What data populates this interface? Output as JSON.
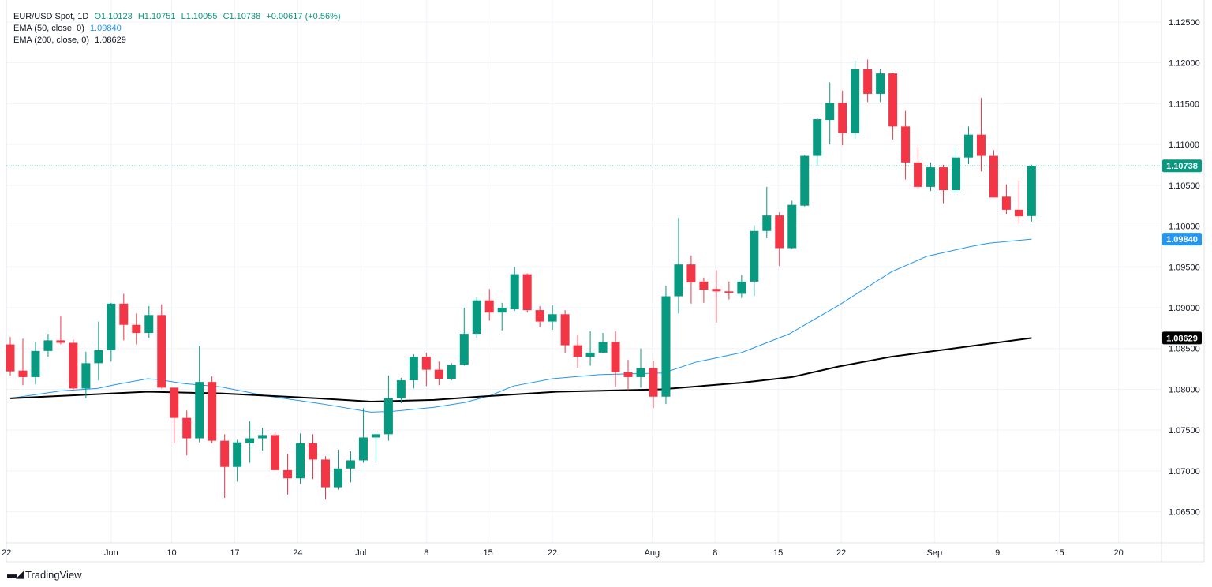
{
  "legend": {
    "symbol": "EUR/USD Spot, 1D",
    "open": "O1.10123",
    "high": "H1.10751",
    "low": "L1.10055",
    "close": "C1.10738",
    "change": "+0.00617 (+0.56%)",
    "ema50_label": "EMA (50, close, 0)",
    "ema50_value": "1.09840",
    "ema200_label": "EMA (200, close, 0)",
    "ema200_value": "1.08629"
  },
  "brand": "TradingView",
  "colors": {
    "up": "#089981",
    "down": "#f23645",
    "ema50": "#2196f3",
    "ema200": "#000000",
    "grid": "#f0f3fa"
  },
  "chart_data": {
    "type": "candlestick",
    "title": "EUR/USD Spot, 1D",
    "ylim": [
      1.061,
      1.1277
    ],
    "y_ticks": [
      "1.12500",
      "1.12000",
      "1.11500",
      "1.11000",
      "1.10500",
      "1.10000",
      "1.09500",
      "1.09000",
      "1.08500",
      "1.08000",
      "1.07500",
      "1.07000",
      "1.06500"
    ],
    "x_ticks": [
      {
        "label": "22",
        "index": -0.3
      },
      {
        "label": "Jun",
        "index": 8
      },
      {
        "label": "10",
        "index": 12.8
      },
      {
        "label": "17",
        "index": 17.8
      },
      {
        "label": "24",
        "index": 22.8
      },
      {
        "label": "Jul",
        "index": 27.8
      },
      {
        "label": "8",
        "index": 33
      },
      {
        "label": "15",
        "index": 37.9
      },
      {
        "label": "22",
        "index": 43
      },
      {
        "label": "Aug",
        "index": 50.9
      },
      {
        "label": "8",
        "index": 55.9
      },
      {
        "label": "15",
        "index": 60.9
      },
      {
        "label": "22",
        "index": 65.9
      },
      {
        "label": "Sep",
        "index": 73.3
      },
      {
        "label": "9",
        "index": 78.3
      },
      {
        "label": "15",
        "index": 83.2
      },
      {
        "label": "20",
        "index": 87.9
      }
    ],
    "ohlc": [
      [
        1.0855,
        1.0864,
        1.0817,
        1.0822
      ],
      [
        1.0823,
        1.0862,
        1.0805,
        1.0815
      ],
      [
        1.0815,
        1.0858,
        1.0806,
        1.0847
      ],
      [
        1.0847,
        1.0868,
        1.084,
        1.086
      ],
      [
        1.086,
        1.089,
        1.0855,
        1.0857
      ],
      [
        1.0857,
        1.0861,
        1.08,
        1.0801
      ],
      [
        1.0801,
        1.0846,
        1.0789,
        1.0832
      ],
      [
        1.0832,
        1.0883,
        1.0811,
        1.0848
      ],
      [
        1.0848,
        1.0906,
        1.0834,
        1.0905
      ],
      [
        1.0905,
        1.0917,
        1.086,
        1.0879
      ],
      [
        1.0879,
        1.0893,
        1.0855,
        1.0869
      ],
      [
        1.0869,
        1.0902,
        1.0863,
        1.0891
      ],
      [
        1.0891,
        1.0904,
        1.0801,
        1.0802
      ],
      [
        1.0802,
        1.0802,
        1.0734,
        1.0765
      ],
      [
        1.0765,
        1.0774,
        1.0719,
        1.074
      ],
      [
        1.074,
        1.0853,
        1.0735,
        1.0809
      ],
      [
        1.0809,
        1.0816,
        1.0734,
        1.0737
      ],
      [
        1.0737,
        1.0745,
        1.0667,
        1.0705
      ],
      [
        1.0705,
        1.0738,
        1.0687,
        1.0735
      ],
      [
        1.0734,
        1.0761,
        1.071,
        1.074
      ],
      [
        1.074,
        1.0753,
        1.0725,
        1.0744
      ],
      [
        1.0744,
        1.0748,
        1.0701,
        1.0701
      ],
      [
        1.0701,
        1.0721,
        1.0671,
        1.0691
      ],
      [
        1.0691,
        1.0746,
        1.0684,
        1.0734
      ],
      [
        1.0734,
        1.0745,
        1.069,
        1.0714
      ],
      [
        1.0714,
        1.0718,
        1.0665,
        1.068
      ],
      [
        1.068,
        1.0726,
        1.0677,
        1.0703
      ],
      [
        1.0703,
        1.0724,
        1.0686,
        1.0713
      ],
      [
        1.0713,
        1.0777,
        1.071,
        1.0741
      ],
      [
        1.0741,
        1.0746,
        1.071,
        1.0745
      ],
      [
        1.0745,
        1.0817,
        1.0737,
        1.0789
      ],
      [
        1.0789,
        1.0814,
        1.0783,
        1.0811
      ],
      [
        1.0811,
        1.0843,
        1.0801,
        1.084
      ],
      [
        1.084,
        1.0845,
        1.0804,
        1.0824
      ],
      [
        1.0824,
        1.0834,
        1.0805,
        1.0813
      ],
      [
        1.0813,
        1.0832,
        1.0811,
        1.083
      ],
      [
        1.083,
        1.09,
        1.0829,
        1.0868
      ],
      [
        1.0868,
        1.0913,
        1.0863,
        1.0909
      ],
      [
        1.0909,
        1.0923,
        1.0884,
        1.0894
      ],
      [
        1.0894,
        1.0906,
        1.0872,
        1.09
      ],
      [
        1.0898,
        1.095,
        1.0896,
        1.0941
      ],
      [
        1.0941,
        1.0942,
        1.0894,
        1.0897
      ],
      [
        1.0897,
        1.0902,
        1.0876,
        1.0883
      ],
      [
        1.0883,
        1.0903,
        1.0873,
        1.0892
      ],
      [
        1.0892,
        1.0897,
        1.0844,
        1.0854
      ],
      [
        1.0854,
        1.0867,
        1.0826,
        1.084
      ],
      [
        1.084,
        1.0871,
        1.0829,
        1.0845
      ],
      [
        1.0845,
        1.0869,
        1.0844,
        1.0858
      ],
      [
        1.0858,
        1.0871,
        1.0803,
        1.0821
      ],
      [
        1.0821,
        1.0836,
        1.0799,
        1.0815
      ],
      [
        1.0815,
        1.085,
        1.0802,
        1.0826
      ],
      [
        1.0826,
        1.0835,
        1.0777,
        1.0791
      ],
      [
        1.0791,
        1.0927,
        1.0782,
        1.0914
      ],
      [
        1.0914,
        1.101,
        1.0893,
        1.0953
      ],
      [
        1.0953,
        1.0964,
        1.0905,
        1.0931
      ],
      [
        1.0932,
        1.0937,
        1.0906,
        1.0922
      ],
      [
        1.0923,
        1.0946,
        1.0882,
        1.092
      ],
      [
        1.092,
        1.0932,
        1.091,
        1.0918
      ],
      [
        1.0917,
        1.094,
        1.0912,
        1.0932
      ],
      [
        1.0932,
        1.1001,
        1.0914,
        1.0994
      ],
      [
        1.0994,
        1.1048,
        1.0985,
        1.1013
      ],
      [
        1.1013,
        1.1017,
        1.0951,
        1.0973
      ],
      [
        1.0973,
        1.1031,
        1.0972,
        1.1026
      ],
      [
        1.1025,
        1.1087,
        1.1024,
        1.1086
      ],
      [
        1.1086,
        1.1132,
        1.1073,
        1.1131
      ],
      [
        1.113,
        1.1176,
        1.11,
        1.1151
      ],
      [
        1.1151,
        1.1166,
        1.1099,
        1.1114
      ],
      [
        1.1114,
        1.1203,
        1.1107,
        1.1192
      ],
      [
        1.1192,
        1.1204,
        1.1152,
        1.1162
      ],
      [
        1.1162,
        1.1192,
        1.1152,
        1.1187
      ],
      [
        1.1187,
        1.1188,
        1.1106,
        1.1122
      ],
      [
        1.1122,
        1.1141,
        1.1057,
        1.1078
      ],
      [
        1.1078,
        1.1097,
        1.1045,
        1.1048
      ],
      [
        1.1048,
        1.1078,
        1.1043,
        1.1072
      ],
      [
        1.1072,
        1.1075,
        1.1028,
        1.1044
      ],
      [
        1.1044,
        1.1097,
        1.104,
        1.1084
      ],
      [
        1.1084,
        1.1122,
        1.1076,
        1.1112
      ],
      [
        1.1112,
        1.1157,
        1.1067,
        1.1086
      ],
      [
        1.1086,
        1.1093,
        1.1035,
        1.1035
      ],
      [
        1.1036,
        1.1051,
        1.1015,
        1.102
      ],
      [
        1.102,
        1.1056,
        1.1003,
        1.1012
      ],
      [
        1.10123,
        1.10751,
        1.10055,
        1.10738
      ]
    ],
    "ema50": [
      [
        0,
        1.0789
      ],
      [
        4,
        1.0798
      ],
      [
        6.9,
        1.0801
      ],
      [
        8.1,
        1.0805
      ],
      [
        10.9,
        1.0813
      ],
      [
        11.7,
        1.0812
      ],
      [
        13.8,
        1.0807
      ],
      [
        16.7,
        1.0803
      ],
      [
        20.3,
        1.0792
      ],
      [
        24.8,
        1.0782
      ],
      [
        28.6,
        1.0772
      ],
      [
        30.3,
        1.0773
      ],
      [
        33.6,
        1.0778
      ],
      [
        36.1,
        1.0784
      ],
      [
        38,
        1.0792
      ],
      [
        39.9,
        1.0804
      ],
      [
        43,
        1.0813
      ],
      [
        46.7,
        1.0818
      ],
      [
        51.8,
        1.082
      ],
      [
        54.3,
        1.0833
      ],
      [
        58,
        1.0845
      ],
      [
        61.8,
        1.0868
      ],
      [
        65.7,
        1.0903
      ],
      [
        69.9,
        1.0944
      ],
      [
        72.7,
        1.0963
      ],
      [
        76.2,
        1.0975
      ],
      [
        77.6,
        1.0979
      ],
      [
        81,
        1.0984
      ]
    ],
    "ema200": [
      [
        0,
        1.0789
      ],
      [
        10.9,
        1.0797
      ],
      [
        16.7,
        1.0795
      ],
      [
        24.4,
        1.0789
      ],
      [
        28.6,
        1.0785
      ],
      [
        33.6,
        1.0787
      ],
      [
        37.2,
        1.0791
      ],
      [
        43.4,
        1.0797
      ],
      [
        51.6,
        1.08
      ],
      [
        58,
        1.0808
      ],
      [
        62,
        1.0815
      ],
      [
        65.7,
        1.0828
      ],
      [
        69.9,
        1.084
      ],
      [
        81,
        1.08629
      ]
    ],
    "last_price": "1.10738",
    "ema50_last": "1.09840",
    "ema200_last": "1.08629"
  }
}
